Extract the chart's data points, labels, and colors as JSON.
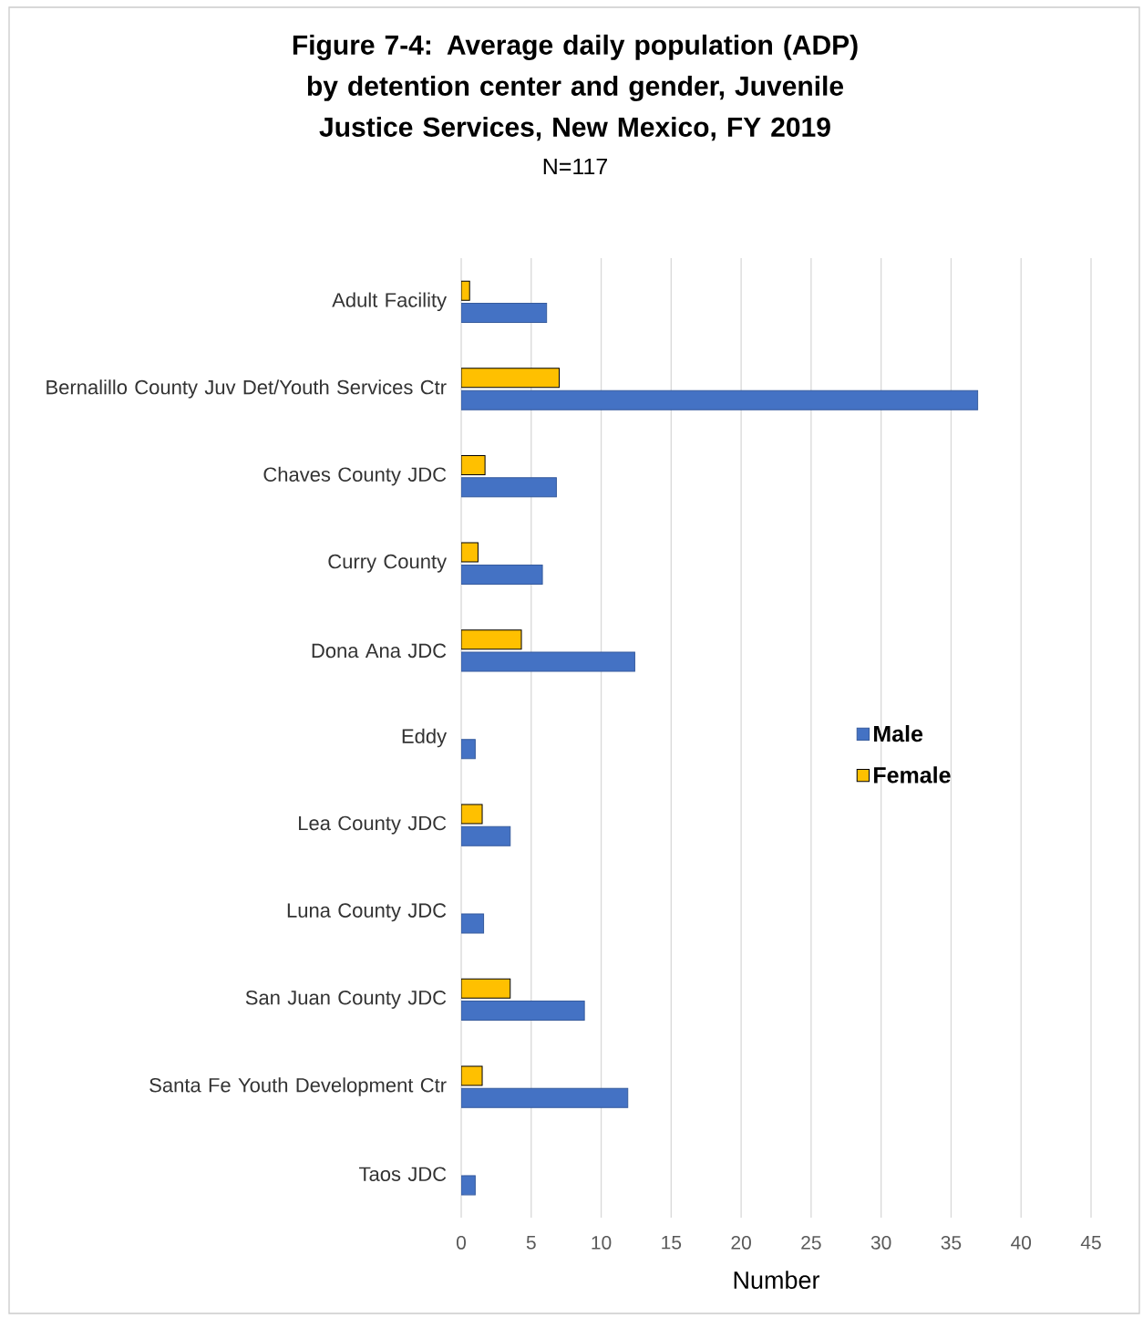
{
  "chart_data": {
    "type": "bar",
    "orientation": "horizontal",
    "title": "Figure 7-4: Average daily population (ADP) by detention center and gender, Juvenile Justice Services, New Mexico, FY 2019",
    "subtitle": "N=117",
    "xlabel": "Number",
    "categories": [
      "Adult Facility",
      "Bernalillo County Juv Det/Youth Services Ctr",
      "Chaves County JDC",
      "Curry County",
      "Dona Ana JDC",
      "Eddy",
      "Lea County JDC",
      "Luna County JDC",
      "San Juan County JDC",
      "Santa Fe Youth Development Ctr",
      "Taos JDC"
    ],
    "series": [
      {
        "name": "Male",
        "color": "#4472c4",
        "values": [
          6.1,
          36.9,
          6.8,
          5.8,
          12.4,
          1.0,
          3.5,
          1.6,
          8.8,
          11.9,
          1.0
        ]
      },
      {
        "name": "Female",
        "color": "#ffc000",
        "values": [
          0.6,
          7.0,
          1.7,
          1.2,
          4.3,
          null,
          1.5,
          null,
          3.5,
          1.5,
          null
        ]
      }
    ],
    "xlim": [
      0,
      45
    ],
    "xticks": [
      0,
      5,
      10,
      15,
      20,
      25,
      30,
      35,
      40,
      45
    ],
    "grid": "x",
    "legend": "right"
  }
}
